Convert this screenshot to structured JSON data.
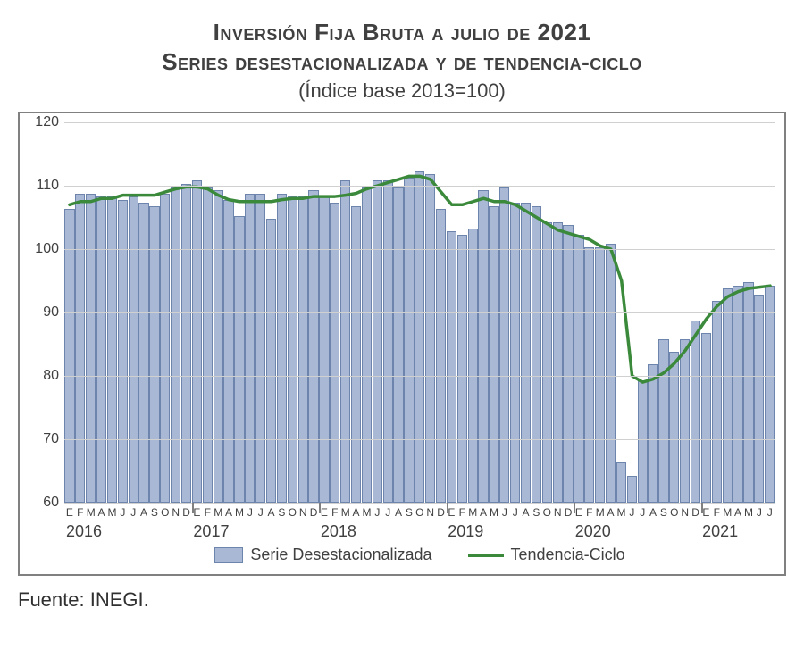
{
  "title_line1": "Inversión Fija Bruta a julio de 2021",
  "title_line2": "Series desestacionalizada y de tendencia-ciclo",
  "subtitle": "(Índice base 2013=100)",
  "source": "Fuente: INEGI.",
  "chart": {
    "type": "bar+line",
    "background_color": "#ffffff",
    "border_color": "#808080",
    "grid_color": "#d0d0d0",
    "text_color": "#404040",
    "ylim": [
      60,
      120
    ],
    "yticks": [
      60,
      70,
      80,
      90,
      100,
      110,
      120
    ],
    "bar_color_fill": "#a9b8d4",
    "bar_color_stroke": "#6d84ad",
    "line_color": "#3b8a3b",
    "line_width": 3.5,
    "legend": {
      "bar_label": "Serie Desestacionalizada",
      "line_label": "Tendencia-Ciclo"
    },
    "years": [
      {
        "label": "2016",
        "months": 12
      },
      {
        "label": "2017",
        "months": 12
      },
      {
        "label": "2018",
        "months": 12
      },
      {
        "label": "2019",
        "months": 12
      },
      {
        "label": "2020",
        "months": 12
      },
      {
        "label": "2021",
        "months": 7
      }
    ],
    "month_letters": [
      "E",
      "F",
      "M",
      "A",
      "M",
      "J",
      "J",
      "A",
      "S",
      "O",
      "N",
      "D"
    ],
    "bars": [
      106.0,
      108.5,
      108.5,
      108.0,
      108.0,
      107.5,
      108.0,
      107.0,
      106.5,
      108.5,
      109.5,
      110.0,
      110.5,
      109.5,
      109.0,
      107.5,
      105.0,
      108.5,
      108.5,
      104.5,
      108.5,
      108.0,
      108.0,
      109.0,
      108.0,
      107.0,
      110.5,
      106.5,
      109.5,
      110.5,
      110.5,
      109.5,
      111.0,
      112.0,
      111.5,
      106.0,
      102.5,
      102.0,
      103.0,
      109.0,
      106.5,
      109.5,
      107.0,
      107.0,
      106.5,
      104.0,
      104.0,
      103.5,
      102.0,
      100.0,
      100.0,
      100.5,
      66.0,
      64.0,
      79.0,
      81.5,
      85.5,
      83.5,
      85.5,
      88.5,
      86.5,
      91.5,
      93.5,
      94.0,
      94.5,
      92.5,
      94.0
    ],
    "trend": [
      107.0,
      107.5,
      107.5,
      108.0,
      108.0,
      108.5,
      108.5,
      108.5,
      108.5,
      109.0,
      109.5,
      109.8,
      109.8,
      109.5,
      108.5,
      107.8,
      107.5,
      107.5,
      107.5,
      107.5,
      107.8,
      108.0,
      108.0,
      108.3,
      108.3,
      108.3,
      108.5,
      108.8,
      109.5,
      110.0,
      110.5,
      111.0,
      111.5,
      111.5,
      111.0,
      109.0,
      107.0,
      107.0,
      107.5,
      108.0,
      107.5,
      107.5,
      107.0,
      106.0,
      105.0,
      104.0,
      103.0,
      102.5,
      102.0,
      101.5,
      100.5,
      100.0,
      95.0,
      80.0,
      79.0,
      79.5,
      80.5,
      82.0,
      84.0,
      86.5,
      89.0,
      91.0,
      92.5,
      93.3,
      93.8,
      94.0,
      94.2
    ]
  }
}
